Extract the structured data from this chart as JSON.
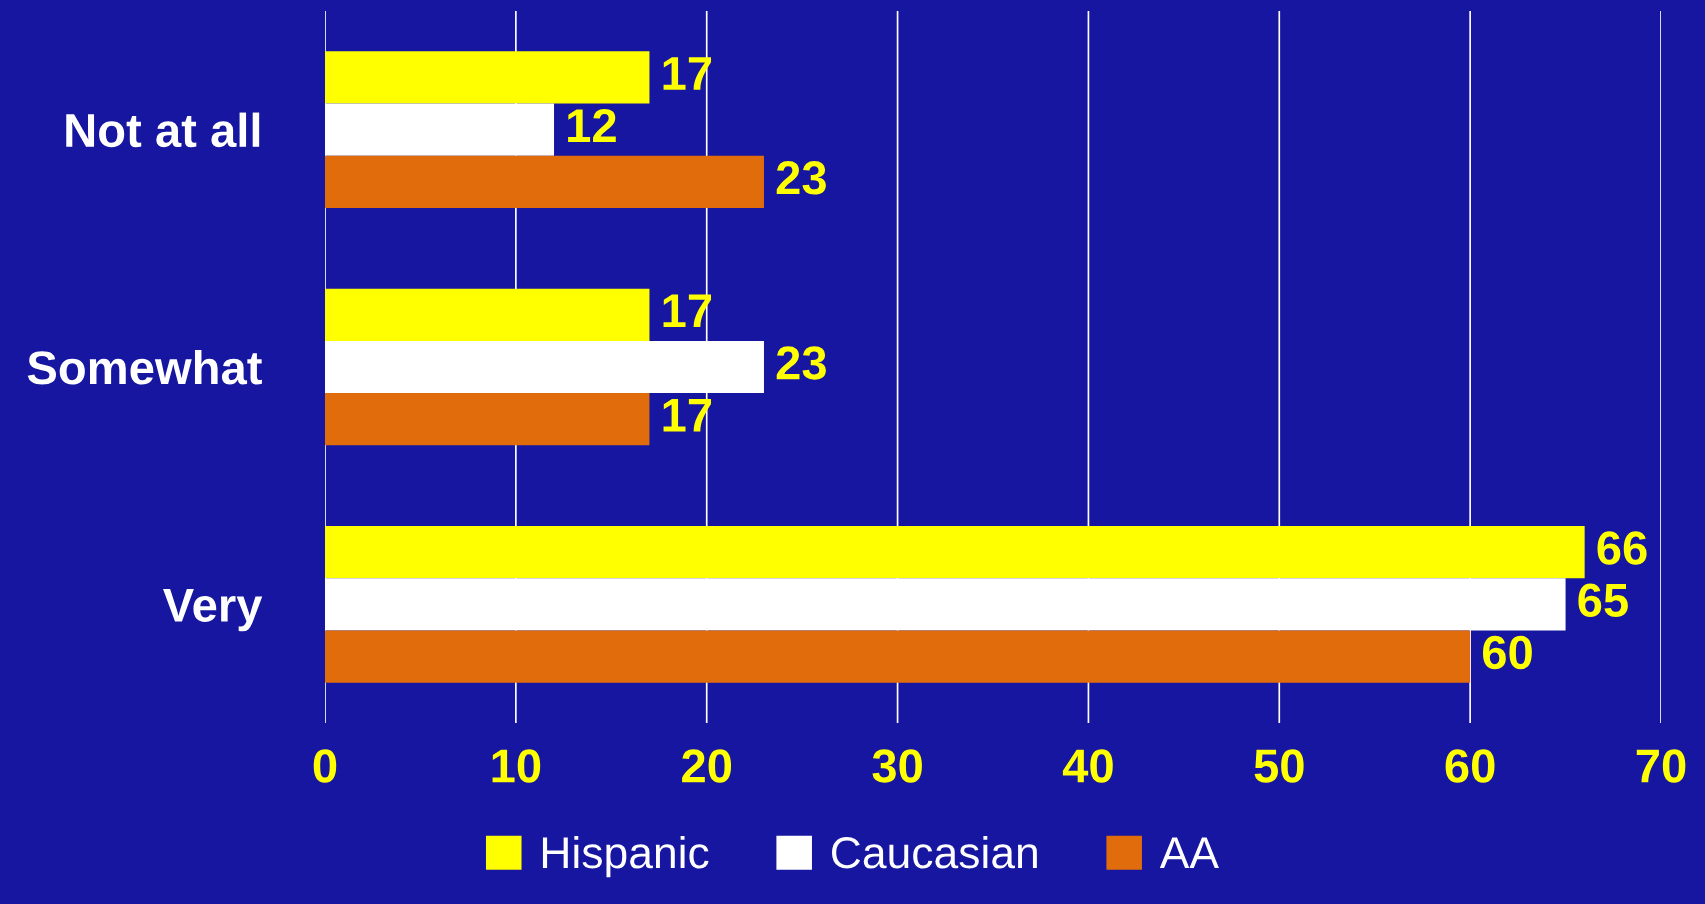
{
  "chart_data": {
    "type": "bar",
    "orientation": "horizontal",
    "categories": [
      "Not at all",
      "Somewhat",
      "Very"
    ],
    "series": [
      {
        "name": "Hispanic",
        "color": "#ffff00",
        "values": [
          17,
          17,
          66
        ]
      },
      {
        "name": "Caucasian",
        "color": "#ffffff",
        "values": [
          12,
          23,
          65
        ]
      },
      {
        "name": "AA",
        "color": "#e06c0c",
        "values": [
          23,
          17,
          60
        ]
      }
    ],
    "xlim": [
      0,
      70
    ],
    "xticks": [
      0,
      10,
      20,
      30,
      40,
      50,
      60,
      70
    ],
    "grid": "x",
    "data_labels": true,
    "legend": "bottom"
  }
}
